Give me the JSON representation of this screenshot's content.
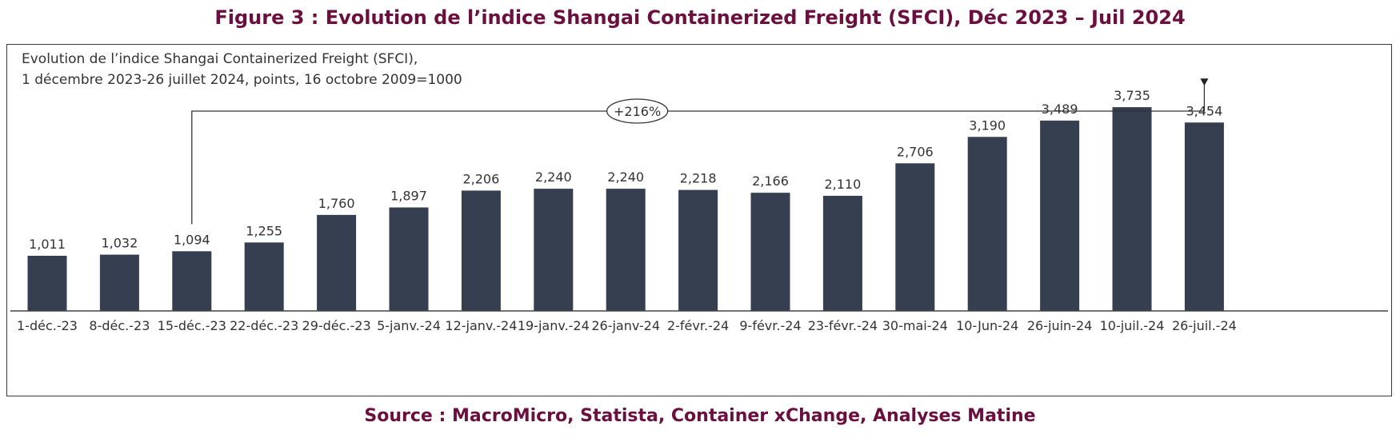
{
  "figure": {
    "title": "Figure 3 : Evolution de l’indice Shangai Containerized Freight (SFCI), Déc 2023 – Juil 2024",
    "source": "Source : MacroMicro, Statista, Container xChange, Analyses Matine"
  },
  "chart_data": {
    "type": "bar",
    "title": "Evolution de l’indice Shangai Containerized Freight (SFCI),",
    "subtitle": "1 décembre 2023-26 juillet 2024, points, 16 octobre 2009=1000",
    "categories": [
      "1-déc.-23",
      "8-déc.-23",
      "15-déc.-23",
      "22-déc.-23",
      "29-déc.-23",
      "5-janv.-24",
      "12-janv.-24",
      "19-janv.-24",
      "26-janv-24",
      "2-févr.-24",
      "9-févr.-24",
      "23-févr.-24",
      "30-mai-24",
      "10-Jun-24",
      "26-juin-24",
      "10-juil.-24",
      "26-juil.-24"
    ],
    "values": [
      1011,
      1032,
      1094,
      1255,
      1760,
      1897,
      2206,
      2240,
      2240,
      2218,
      2166,
      2110,
      2706,
      3190,
      3489,
      3735,
      3454
    ],
    "value_labels": [
      "1,011",
      "1,032",
      "1,094",
      "1,255",
      "1,760",
      "1,897",
      "2,206",
      "2,240",
      "2,240",
      "2,218",
      "2,166",
      "2,110",
      "2,706",
      "3,190",
      "3,489",
      "3,735",
      "3,454"
    ],
    "ylim": [
      0,
      4000
    ],
    "xlabel": "",
    "ylabel": "",
    "grid": false,
    "bar_color": "#353f4f",
    "annotation": {
      "label": "+216%",
      "from_category": "15-déc.-23",
      "to_category": "26-juil.-24"
    }
  }
}
